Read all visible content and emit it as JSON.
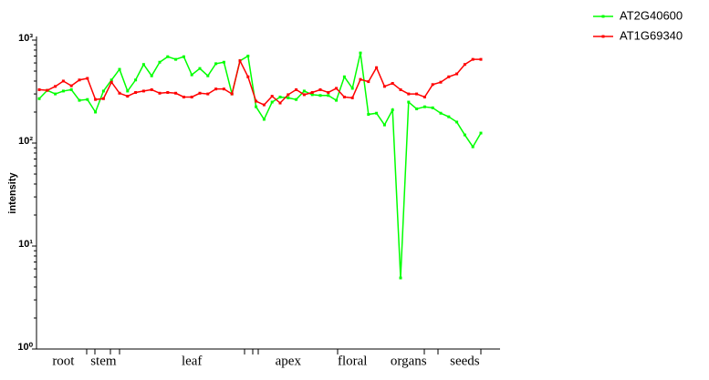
{
  "chart_data": {
    "type": "line",
    "ylabel": "intensity",
    "log_y": true,
    "ylim": [
      1,
      1000
    ],
    "yticks": [
      {
        "value": 1,
        "label": "10⁰"
      },
      {
        "value": 10,
        "label": "10¹"
      },
      {
        "value": 100,
        "label": "10²"
      },
      {
        "value": 1000,
        "label": "10³"
      }
    ],
    "categories": [
      null,
      null,
      null,
      "root",
      null,
      null,
      null,
      null,
      "stem",
      null,
      null,
      null,
      null,
      null,
      null,
      null,
      null,
      null,
      null,
      "leaf",
      null,
      null,
      null,
      null,
      null,
      null,
      null,
      null,
      null,
      null,
      null,
      "apex",
      null,
      null,
      null,
      null,
      null,
      null,
      null,
      "floral",
      null,
      null,
      null,
      null,
      null,
      null,
      "organs",
      null,
      null,
      null,
      null,
      null,
      null,
      "seeds",
      null,
      null
    ],
    "legend": "top-right",
    "series": [
      {
        "name": "AT2G40600",
        "color": "#00ff00",
        "values": [
          270,
          325,
          300,
          320,
          330,
          260,
          265,
          200,
          320,
          410,
          520,
          320,
          410,
          580,
          450,
          610,
          690,
          650,
          690,
          460,
          530,
          450,
          590,
          610,
          300,
          630,
          700,
          225,
          170,
          250,
          280,
          275,
          265,
          320,
          295,
          290,
          290,
          260,
          440,
          340,
          750,
          190,
          195,
          150,
          210,
          4.9,
          250,
          215,
          225,
          220,
          195,
          180,
          160,
          120,
          92,
          125
        ]
      },
      {
        "name": "AT1G69340",
        "color": "#ff0000",
        "values": [
          330,
          325,
          355,
          400,
          360,
          410,
          425,
          265,
          270,
          390,
          305,
          285,
          310,
          320,
          330,
          305,
          310,
          305,
          280,
          280,
          305,
          300,
          335,
          335,
          300,
          630,
          440,
          255,
          235,
          285,
          245,
          295,
          330,
          295,
          310,
          330,
          310,
          340,
          280,
          275,
          415,
          395,
          540,
          355,
          380,
          330,
          300,
          300,
          280,
          370,
          390,
          440,
          470,
          580,
          650,
          650
        ]
      }
    ]
  }
}
